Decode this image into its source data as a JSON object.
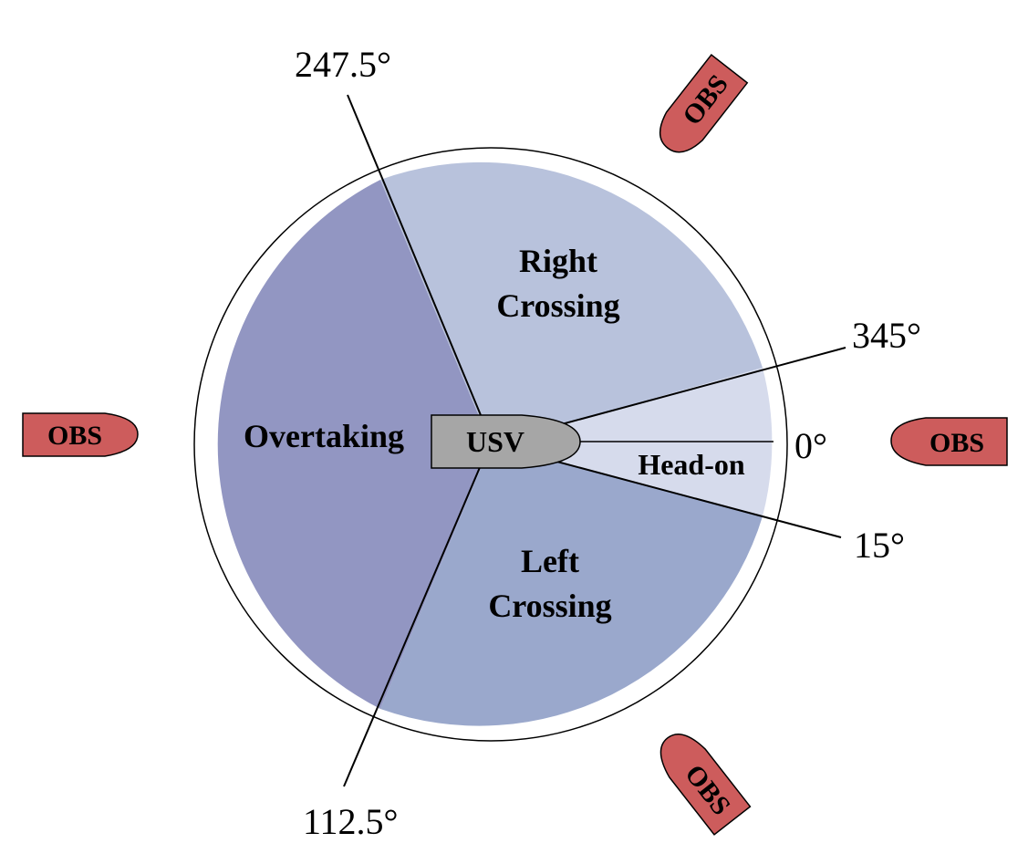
{
  "zones": {
    "overtaking": {
      "label": "Overtaking",
      "color": "#9296c2"
    },
    "right_crossing": {
      "line1": "Right",
      "line2": "Crossing",
      "color": "#b8c2dc"
    },
    "left_crossing": {
      "line1": "Left",
      "line2": "Crossing",
      "color": "#9aa8cc"
    },
    "head_on": {
      "label": "Head-on",
      "color": "#d6dbec"
    }
  },
  "angles": {
    "a247": "247.5°",
    "a345": "345°",
    "a0": "0°",
    "a15": "15°",
    "a112": "112.5°"
  },
  "usv": {
    "label": "USV",
    "color": "#a6a6a6"
  },
  "obstacles": {
    "label": "OBS",
    "color": "#cd5c5c",
    "items": [
      {
        "label": "OBS",
        "position": "top-right"
      },
      {
        "label": "OBS",
        "position": "left"
      },
      {
        "label": "OBS",
        "position": "right"
      },
      {
        "label": "OBS",
        "position": "bottom-right"
      }
    ]
  }
}
